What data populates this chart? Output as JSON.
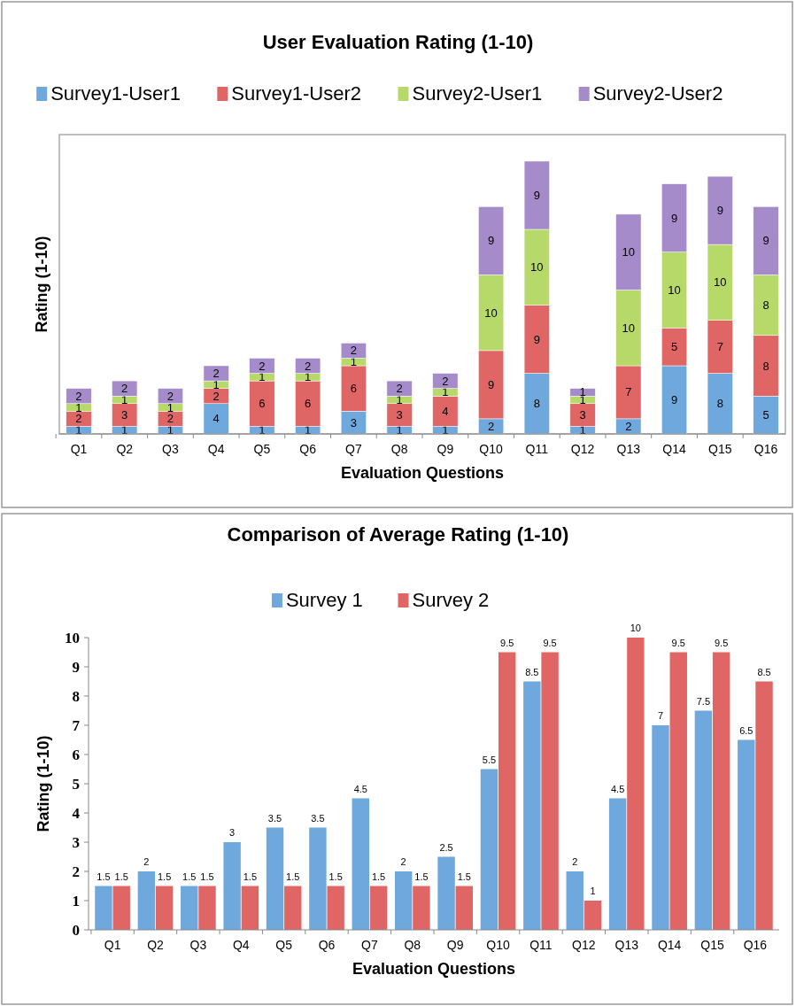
{
  "chart_data": [
    {
      "type": "bar",
      "title": "User Evaluation Rating (1-10)",
      "xlabel": "Evaluation Questions",
      "ylabel": "Rating (1-10)",
      "stacked": true,
      "data_labels": true,
      "legend": "top",
      "grid": false,
      "categories": [
        "Q1",
        "Q2",
        "Q3",
        "Q4",
        "Q5",
        "Q6",
        "Q7",
        "Q8",
        "Q9",
        "Q10",
        "Q11",
        "Q12",
        "Q13",
        "Q14",
        "Q15",
        "Q16"
      ],
      "series": [
        {
          "name": "Survey1-User1",
          "color": "#6fa8dc",
          "values": [
            1,
            1,
            1,
            4,
            1,
            1,
            3,
            1,
            1,
            2,
            8,
            1,
            2,
            9,
            8,
            5
          ]
        },
        {
          "name": "Survey1-User2",
          "color": "#e06666",
          "values": [
            2,
            3,
            2,
            2,
            6,
            6,
            6,
            3,
            4,
            9,
            9,
            3,
            7,
            5,
            7,
            8
          ]
        },
        {
          "name": "Survey2-User1",
          "color": "#b6d96a",
          "values": [
            1,
            1,
            1,
            1,
            1,
            1,
            1,
            1,
            1,
            10,
            10,
            1,
            10,
            10,
            10,
            8
          ]
        },
        {
          "name": "Survey2-User2",
          "color": "#a58bc9",
          "values": [
            2,
            2,
            2,
            2,
            2,
            2,
            2,
            2,
            2,
            9,
            9,
            1,
            10,
            9,
            9,
            9
          ]
        }
      ]
    },
    {
      "type": "bar",
      "title": "Comparison of Average Rating (1-10)",
      "xlabel": "Evaluation Questions",
      "ylabel": "Rating (1-10)",
      "data_labels": true,
      "legend": "top",
      "grid": false,
      "ylim": [
        0,
        10
      ],
      "yticks": [
        0,
        1,
        2,
        3,
        4,
        5,
        6,
        7,
        8,
        9,
        10
      ],
      "categories": [
        "Q1",
        "Q2",
        "Q3",
        "Q4",
        "Q5",
        "Q6",
        "Q7",
        "Q8",
        "Q9",
        "Q10",
        "Q11",
        "Q12",
        "Q13",
        "Q14",
        "Q15",
        "Q16"
      ],
      "series": [
        {
          "name": "Survey 1",
          "color": "#6fa8dc",
          "values": [
            1.5,
            2,
            1.5,
            3,
            3.5,
            3.5,
            4.5,
            2,
            2.5,
            5.5,
            8.5,
            2,
            4.5,
            7,
            7.5,
            6.5
          ]
        },
        {
          "name": "Survey 2",
          "color": "#e06666",
          "values": [
            1.5,
            1.5,
            1.5,
            1.5,
            1.5,
            1.5,
            1.5,
            1.5,
            1.5,
            9.5,
            9.5,
            1,
            10,
            9.5,
            9.5,
            8.5
          ]
        }
      ]
    }
  ]
}
